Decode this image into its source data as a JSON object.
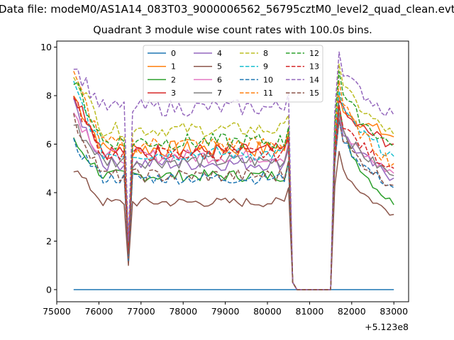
{
  "suptitle": "Data file: modeM0/AS1A14_083T03_9000006562_56795cztM0_level2_quad_clean.evt",
  "chart_data": {
    "type": "line",
    "title": "Quadrant 3 module wise count rates with 100.0s bins.",
    "xlabel": "",
    "ylabel": "",
    "x_offset_label": "+5.123e8",
    "xlim": [
      75000,
      83350
    ],
    "ylim": [
      -0.5,
      10.25
    ],
    "x_ticks": [
      75000,
      76000,
      77000,
      78000,
      79000,
      80000,
      81000,
      82000,
      83000
    ],
    "x_tick_labels": [
      "75000",
      "76000",
      "77000",
      "78000",
      "79000",
      "80000",
      "81000",
      "82000",
      "83000"
    ],
    "y_ticks": [
      0,
      2,
      4,
      6,
      8,
      10
    ],
    "y_tick_labels": [
      "0",
      "2",
      "4",
      "6",
      "8",
      "10"
    ],
    "legend": {
      "position": "top-center",
      "entries": [
        "0",
        "1",
        "2",
        "3",
        "4",
        "5",
        "6",
        "7",
        "8",
        "9",
        "10",
        "11",
        "12",
        "13",
        "14",
        "15"
      ]
    },
    "segments": [
      {
        "name": "segment_1",
        "x_start": 75400,
        "x_end": 80500,
        "step": 100,
        "dip_at": 76700
      },
      {
        "name": "gap",
        "x_start": 80600,
        "x_end": 81500,
        "values": [
          0.3,
          0,
          0,
          0,
          0,
          0,
          0,
          0,
          0,
          0
        ]
      },
      {
        "name": "segment_2",
        "x_start": 81600,
        "x_end": 83000,
        "step": 100
      }
    ],
    "series": [
      {
        "name": "0",
        "color": "#1f77b4",
        "style": "solid",
        "start": 0,
        "level1": 0,
        "level2_peak": 0,
        "level2_end": 0,
        "min_dip": 0,
        "amp": 0
      },
      {
        "name": "1",
        "color": "#ff7f0e",
        "style": "solid",
        "start": 8.0,
        "level1": 5.8,
        "level2_peak": 8.0,
        "level2_end": 6.3,
        "min_dip": 1.5,
        "amp": 0.35
      },
      {
        "name": "2",
        "color": "#2ca02c",
        "style": "solid",
        "start": 6.1,
        "level1": 4.7,
        "level2_peak": 7.6,
        "level2_end": 3.5,
        "min_dip": 1.4,
        "amp": 0.25
      },
      {
        "name": "3",
        "color": "#d62728",
        "style": "solid",
        "start": 8.2,
        "level1": 5.7,
        "level2_peak": 7.8,
        "level2_end": 6.0,
        "min_dip": 1.6,
        "amp": 0.35
      },
      {
        "name": "4",
        "color": "#9467bd",
        "style": "solid",
        "start": 7.6,
        "level1": 5.2,
        "level2_peak": 7.2,
        "level2_end": 4.6,
        "min_dip": 1.3,
        "amp": 0.3
      },
      {
        "name": "5",
        "color": "#8c564b",
        "style": "solid",
        "start": 5.0,
        "level1": 3.6,
        "level2_peak": 5.7,
        "level2_end": 3.1,
        "min_dip": 1.0,
        "amp": 0.2
      },
      {
        "name": "6",
        "color": "#e377c2",
        "style": "solid",
        "start": 7.3,
        "level1": 5.5,
        "level2_peak": 7.1,
        "level2_end": 4.8,
        "min_dip": 1.4,
        "amp": 0.3
      },
      {
        "name": "7",
        "color": "#7f7f7f",
        "style": "solid",
        "start": 6.8,
        "level1": 5.3,
        "level2_peak": 7.3,
        "level2_end": 4.7,
        "min_dip": 1.3,
        "amp": 0.3
      },
      {
        "name": "8",
        "color": "#bcbd22",
        "style": "dashed",
        "start": 9.0,
        "level1": 6.6,
        "level2_peak": 9.3,
        "level2_end": 6.4,
        "min_dip": 1.8,
        "amp": 0.3
      },
      {
        "name": "9",
        "color": "#17becf",
        "style": "dashed",
        "start": 8.4,
        "level1": 5.6,
        "level2_peak": 8.2,
        "level2_end": 5.5,
        "min_dip": 1.5,
        "amp": 0.3
      },
      {
        "name": "10",
        "color": "#1f77b4",
        "style": "dashed",
        "start": 6.0,
        "level1": 4.6,
        "level2_peak": 7.0,
        "level2_end": 4.2,
        "min_dip": 1.2,
        "amp": 0.25
      },
      {
        "name": "11",
        "color": "#ff7f0e",
        "style": "dashed",
        "start": 8.8,
        "level1": 6.0,
        "level2_peak": 8.6,
        "level2_end": 5.2,
        "min_dip": 1.6,
        "amp": 0.35
      },
      {
        "name": "12",
        "color": "#2ca02c",
        "style": "dashed",
        "start": 8.6,
        "level1": 6.1,
        "level2_peak": 9.0,
        "level2_end": 5.9,
        "min_dip": 1.7,
        "amp": 0.35
      },
      {
        "name": "13",
        "color": "#d62728",
        "style": "dashed",
        "start": 7.8,
        "level1": 5.6,
        "level2_peak": 7.6,
        "level2_end": 5.0,
        "min_dip": 1.5,
        "amp": 0.3
      },
      {
        "name": "14",
        "color": "#9467bd",
        "style": "dashed",
        "start": 9.2,
        "level1": 7.5,
        "level2_peak": 9.8,
        "level2_end": 7.2,
        "min_dip": 2.0,
        "amp": 0.35
      },
      {
        "name": "15",
        "color": "#8c564b",
        "style": "dashed",
        "start": 7.0,
        "level1": 4.7,
        "level2_peak": 7.0,
        "level2_end": 4.3,
        "min_dip": 1.3,
        "amp": 0.3
      }
    ]
  }
}
